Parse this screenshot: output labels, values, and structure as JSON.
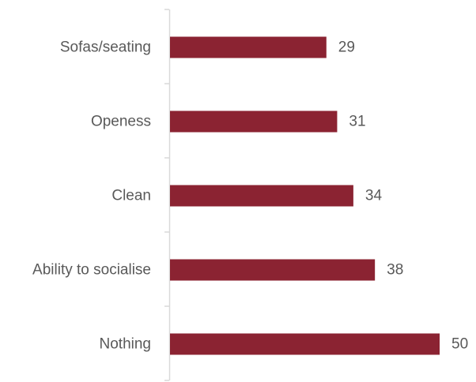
{
  "chart_data": {
    "type": "bar",
    "orientation": "horizontal",
    "categories": [
      "Sofas/seating",
      "Openess",
      "Clean",
      "Ability to socialise",
      "Nothing"
    ],
    "values": [
      29,
      31,
      34,
      38,
      50
    ],
    "title": "",
    "xlabel": "",
    "ylabel": "",
    "xlim": [
      0,
      50
    ],
    "grid": false,
    "legend": "none",
    "bar_color": "#8B2332",
    "axis_color": "#D9D9D9",
    "label_color": "#595959",
    "data_labels": true
  }
}
